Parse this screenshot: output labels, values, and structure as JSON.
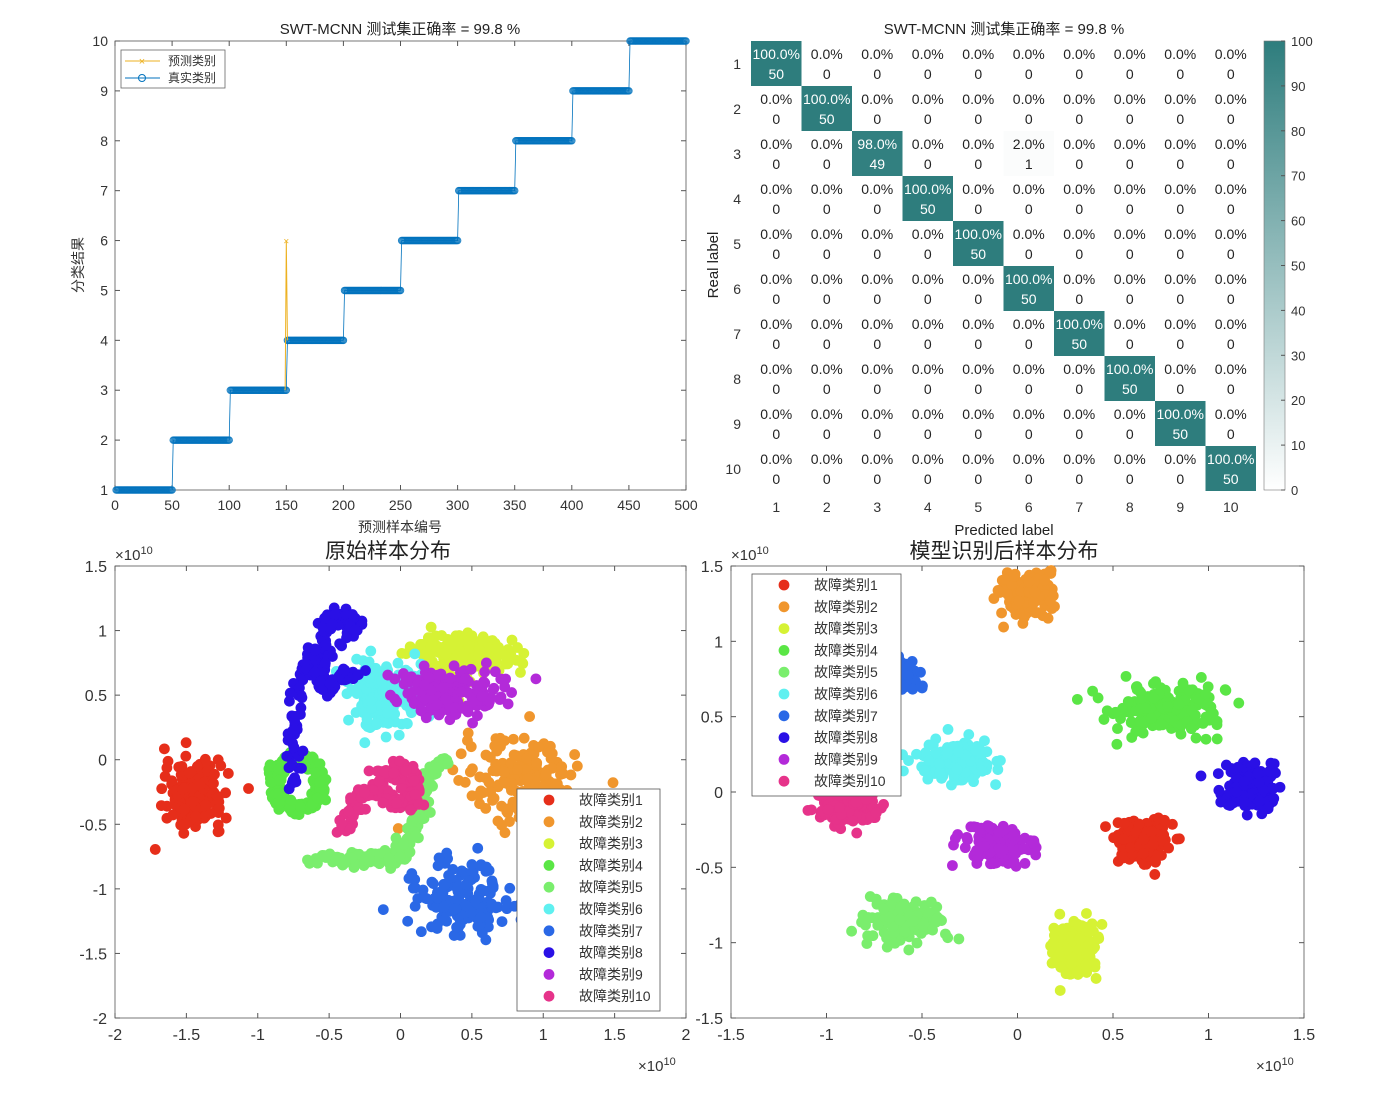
{
  "chart_data": [
    {
      "type": "line",
      "title": "SWT-MCNN 测试集正确率 = 99.8 %",
      "xlabel": "预测样本编号",
      "ylabel": "分类结果",
      "xlim": [
        0,
        500
      ],
      "ylim": [
        1,
        10
      ],
      "xticks": [
        0,
        50,
        100,
        150,
        200,
        250,
        300,
        350,
        400,
        450,
        500
      ],
      "yticks": [
        1,
        2,
        3,
        4,
        5,
        6,
        7,
        8,
        9,
        10
      ],
      "legend": {
        "position": "top-left",
        "entries": [
          "预测类别",
          "真实类别"
        ]
      },
      "series": [
        {
          "name": "预测类别",
          "color": "#edb120",
          "marker": "x",
          "steps": [
            [
              1,
              50,
              1
            ],
            [
              51,
              100,
              2
            ],
            [
              101,
              150,
              3
            ],
            [
              151,
              200,
              4
            ],
            [
              201,
              250,
              5
            ],
            [
              251,
              300,
              6
            ],
            [
              301,
              350,
              7
            ],
            [
              351,
              400,
              8
            ],
            [
              401,
              450,
              9
            ],
            [
              451,
              500,
              10
            ]
          ],
          "outliers": [
            [
              150,
              6
            ]
          ]
        },
        {
          "name": "真实类别",
          "color": "#0072bd",
          "marker": "o",
          "steps": [
            [
              1,
              50,
              1
            ],
            [
              51,
              100,
              2
            ],
            [
              101,
              150,
              3
            ],
            [
              151,
              200,
              4
            ],
            [
              201,
              250,
              5
            ],
            [
              251,
              300,
              6
            ],
            [
              301,
              350,
              7
            ],
            [
              351,
              400,
              8
            ],
            [
              401,
              450,
              9
            ],
            [
              451,
              500,
              10
            ]
          ]
        }
      ]
    },
    {
      "type": "heatmap",
      "title": "SWT-MCNN 测试集正确率 = 99.8 %",
      "xlabel": "Predicted label",
      "ylabel": "Real label",
      "categories": [
        "1",
        "2",
        "3",
        "4",
        "5",
        "6",
        "7",
        "8",
        "9",
        "10"
      ],
      "counts": [
        [
          50,
          0,
          0,
          0,
          0,
          0,
          0,
          0,
          0,
          0
        ],
        [
          0,
          50,
          0,
          0,
          0,
          0,
          0,
          0,
          0,
          0
        ],
        [
          0,
          0,
          49,
          0,
          0,
          1,
          0,
          0,
          0,
          0
        ],
        [
          0,
          0,
          0,
          50,
          0,
          0,
          0,
          0,
          0,
          0
        ],
        [
          0,
          0,
          0,
          0,
          50,
          0,
          0,
          0,
          0,
          0
        ],
        [
          0,
          0,
          0,
          0,
          0,
          50,
          0,
          0,
          0,
          0
        ],
        [
          0,
          0,
          0,
          0,
          0,
          0,
          50,
          0,
          0,
          0
        ],
        [
          0,
          0,
          0,
          0,
          0,
          0,
          0,
          50,
          0,
          0
        ],
        [
          0,
          0,
          0,
          0,
          0,
          0,
          0,
          0,
          50,
          0
        ],
        [
          0,
          0,
          0,
          0,
          0,
          0,
          0,
          0,
          0,
          50
        ]
      ],
      "percents": [
        [
          "100.0%",
          "0.0%",
          "0.0%",
          "0.0%",
          "0.0%",
          "0.0%",
          "0.0%",
          "0.0%",
          "0.0%",
          "0.0%"
        ],
        [
          "0.0%",
          "100.0%",
          "0.0%",
          "0.0%",
          "0.0%",
          "0.0%",
          "0.0%",
          "0.0%",
          "0.0%",
          "0.0%"
        ],
        [
          "0.0%",
          "0.0%",
          "98.0%",
          "0.0%",
          "0.0%",
          "2.0%",
          "0.0%",
          "0.0%",
          "0.0%",
          "0.0%"
        ],
        [
          "0.0%",
          "0.0%",
          "0.0%",
          "100.0%",
          "0.0%",
          "0.0%",
          "0.0%",
          "0.0%",
          "0.0%",
          "0.0%"
        ],
        [
          "0.0%",
          "0.0%",
          "0.0%",
          "0.0%",
          "100.0%",
          "0.0%",
          "0.0%",
          "0.0%",
          "0.0%",
          "0.0%"
        ],
        [
          "0.0%",
          "0.0%",
          "0.0%",
          "0.0%",
          "0.0%",
          "100.0%",
          "0.0%",
          "0.0%",
          "0.0%",
          "0.0%"
        ],
        [
          "0.0%",
          "0.0%",
          "0.0%",
          "0.0%",
          "0.0%",
          "0.0%",
          "100.0%",
          "0.0%",
          "0.0%",
          "0.0%"
        ],
        [
          "0.0%",
          "0.0%",
          "0.0%",
          "0.0%",
          "0.0%",
          "0.0%",
          "0.0%",
          "100.0%",
          "0.0%",
          "0.0%"
        ],
        [
          "0.0%",
          "0.0%",
          "0.0%",
          "0.0%",
          "0.0%",
          "0.0%",
          "0.0%",
          "0.0%",
          "100.0%",
          "0.0%"
        ],
        [
          "0.0%",
          "0.0%",
          "0.0%",
          "0.0%",
          "0.0%",
          "0.0%",
          "0.0%",
          "0.0%",
          "0.0%",
          "100.0%"
        ]
      ],
      "colorbar": {
        "range": [
          0,
          100
        ],
        "ticks": [
          0,
          10,
          20,
          30,
          40,
          50,
          60,
          70,
          80,
          90,
          100
        ],
        "low_color": "#ffffff",
        "high_color": "#2e7d7d"
      }
    },
    {
      "type": "scatter",
      "title": "原始样本分布",
      "xlim": [
        -2,
        2
      ],
      "ylim": [
        -2,
        1.5
      ],
      "xticks": [
        "-2",
        "-1.5",
        "-1",
        "-0.5",
        "0",
        "0.5",
        "1",
        "1.5",
        "2"
      ],
      "yticks": [
        "-2",
        "-1.5",
        "-1",
        "-0.5",
        "0",
        "0.5",
        "1",
        "1.5"
      ],
      "exponent": "×10",
      "exponent_power": "10",
      "legend": {
        "position": "bottom-right"
      },
      "clusters": [
        {
          "name": "故障类别1",
          "color": "#e62e1a",
          "shape": "blob",
          "cx": -1.45,
          "cy": -0.27,
          "rx": 0.22,
          "ry": 0.27,
          "n": 220
        },
        {
          "name": "故障类别2",
          "color": "#f0962d",
          "shape": "blob",
          "cx": 0.85,
          "cy": -0.15,
          "rx": 0.45,
          "ry": 0.35,
          "n": 160
        },
        {
          "name": "故障类别3",
          "color": "#d6f234",
          "shape": "blob",
          "cx": 0.45,
          "cy": 0.82,
          "rx": 0.4,
          "ry": 0.2,
          "n": 200
        },
        {
          "name": "故障类别4",
          "color": "#5ae645",
          "shape": "ring",
          "cx": -0.72,
          "cy": -0.18,
          "rx": 0.22,
          "ry": 0.26,
          "n": 230
        },
        {
          "name": "故障类别5",
          "color": "#7aee6d",
          "shape": "path",
          "pts": [
            [
              -0.65,
              -0.75
            ],
            [
              -0.3,
              -0.78
            ],
            [
              0,
              -0.75
            ],
            [
              0.1,
              -0.5
            ],
            [
              0.15,
              -0.2
            ],
            [
              0.3,
              0
            ]
          ],
          "n": 160
        },
        {
          "name": "故障类别6",
          "color": "#5ff0f0",
          "shape": "blob",
          "cx": -0.12,
          "cy": 0.5,
          "rx": 0.25,
          "ry": 0.28,
          "n": 200
        },
        {
          "name": "故障类别7",
          "color": "#2a68e6",
          "shape": "blob",
          "cx": 0.45,
          "cy": -1.08,
          "rx": 0.4,
          "ry": 0.3,
          "n": 160
        },
        {
          "name": "故障类别8",
          "color": "#2a10e6",
          "shape": "path",
          "pts": [
            [
              -0.75,
              -0.23
            ],
            [
              -0.75,
              0.2
            ],
            [
              -0.72,
              0.6
            ],
            [
              -0.55,
              0.95
            ],
            [
              -0.45,
              1.15
            ],
            [
              -0.3,
              1.05
            ],
            [
              -0.6,
              0.7
            ],
            [
              -0.5,
              0.55
            ],
            [
              -0.3,
              0.7
            ]
          ],
          "n": 190
        },
        {
          "name": "故障类别9",
          "color": "#b32ad9",
          "shape": "blob",
          "cx": 0.35,
          "cy": 0.52,
          "rx": 0.4,
          "ry": 0.2,
          "n": 170
        },
        {
          "name": "故障类别10",
          "color": "#e6338a",
          "shape": "path",
          "pts": [
            [
              -0.4,
              -0.55
            ],
            [
              -0.3,
              -0.3
            ],
            [
              -0.15,
              -0.2
            ],
            [
              -0.05,
              -0.35
            ],
            [
              0.1,
              -0.3
            ],
            [
              0.05,
              -0.05
            ],
            [
              -0.15,
              -0.12
            ]
          ],
          "n": 190
        }
      ]
    },
    {
      "type": "scatter",
      "title": "模型识别后样本分布",
      "xlim": [
        -1.5,
        1.5
      ],
      "ylim": [
        -1.5,
        1.5
      ],
      "xticks": [
        "-1.5",
        "-1",
        "-0.5",
        "0",
        "0.5",
        "1",
        "1.5"
      ],
      "yticks": [
        "-1.5",
        "-1",
        "-0.5",
        "0",
        "0.5",
        "1",
        "1.5"
      ],
      "exponent": "×10",
      "exponent_power": "10",
      "legend": {
        "position": "top-left"
      },
      "clusters": [
        {
          "name": "故障类别1",
          "color": "#e62e1a",
          "shape": "blob",
          "cx": 0.65,
          "cy": -0.35,
          "rx": 0.16,
          "ry": 0.16,
          "n": 170
        },
        {
          "name": "故障类别2",
          "color": "#f0962d",
          "shape": "blob",
          "cx": 0.05,
          "cy": 1.32,
          "rx": 0.17,
          "ry": 0.17,
          "n": 170
        },
        {
          "name": "故障类别3",
          "color": "#d6f234",
          "shape": "blob",
          "cx": 0.3,
          "cy": -1.05,
          "rx": 0.14,
          "ry": 0.2,
          "n": 170
        },
        {
          "name": "故障类别4",
          "color": "#5ae645",
          "shape": "blob",
          "cx": 0.75,
          "cy": 0.55,
          "rx": 0.32,
          "ry": 0.2,
          "n": 170
        },
        {
          "name": "故障类别5",
          "color": "#7aee6d",
          "shape": "blob",
          "cx": -0.6,
          "cy": -0.85,
          "rx": 0.22,
          "ry": 0.14,
          "n": 170
        },
        {
          "name": "故障类别6",
          "color": "#5ff0f0",
          "shape": "blob",
          "cx": -0.3,
          "cy": 0.2,
          "rx": 0.2,
          "ry": 0.14,
          "n": 170
        },
        {
          "name": "故障类别7",
          "color": "#2a68e6",
          "shape": "blob",
          "cx": -0.65,
          "cy": 0.78,
          "rx": 0.14,
          "ry": 0.12,
          "n": 170
        },
        {
          "name": "故障类别8",
          "color": "#2a10e6",
          "shape": "blob",
          "cx": 1.22,
          "cy": 0.02,
          "rx": 0.15,
          "ry": 0.17,
          "n": 170
        },
        {
          "name": "故障类别9",
          "color": "#b32ad9",
          "shape": "blob",
          "cx": -0.1,
          "cy": -0.35,
          "rx": 0.2,
          "ry": 0.13,
          "n": 170
        },
        {
          "name": "故障类别10",
          "color": "#e6338a",
          "shape": "blob",
          "cx": -0.9,
          "cy": -0.1,
          "rx": 0.16,
          "ry": 0.12,
          "n": 170
        }
      ]
    }
  ]
}
